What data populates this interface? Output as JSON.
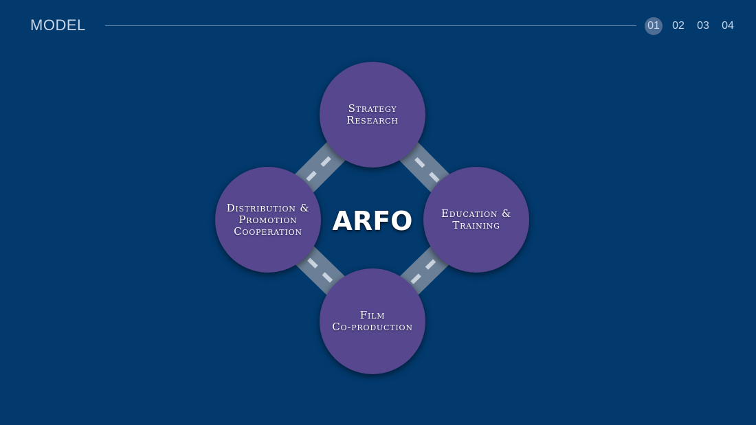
{
  "header": {
    "title": "MODEL",
    "pages": [
      {
        "label": "01",
        "active": true
      },
      {
        "label": "02",
        "active": false
      },
      {
        "label": "03",
        "active": false
      },
      {
        "label": "04",
        "active": false
      }
    ]
  },
  "diagram": {
    "center_label": "ARFO",
    "nodes": [
      {
        "label": "Strategy\nResearch"
      },
      {
        "label": "Education &\nTraining"
      },
      {
        "label": "Film\nCo-production"
      },
      {
        "label": "Distribution &\nPromotion\nCooperation"
      }
    ]
  },
  "colors": {
    "background": "#023a6e",
    "node_fill": "#56478f",
    "road": "#6b7f96",
    "road_dash": "#c9d3df",
    "active_page": "#4e6d94"
  }
}
